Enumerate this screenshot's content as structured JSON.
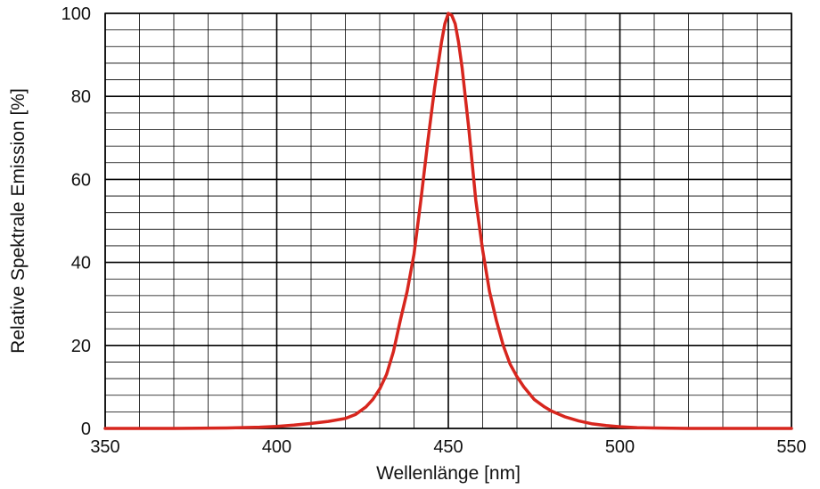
{
  "chart_data": {
    "type": "line",
    "title": "",
    "xlabel": "Wellenlänge [nm]",
    "ylabel": "Relative Spektrale Emission [%]",
    "xlim": [
      350,
      550
    ],
    "ylim": [
      0,
      100
    ],
    "x_ticks": [
      350,
      400,
      450,
      500,
      550
    ],
    "y_ticks": [
      0,
      20,
      40,
      60,
      80,
      100
    ],
    "x_tick_labels": [
      "350",
      "400",
      "450",
      "500",
      "550"
    ],
    "y_tick_labels": [
      "0",
      "20",
      "40",
      "60",
      "80",
      "100"
    ],
    "grid": true,
    "x_minor_step": 10,
    "y_minor_step": 4,
    "series_color": "#d7261e",
    "series": [
      {
        "x": [
          350,
          370,
          385,
          395,
          400,
          405,
          410,
          415,
          420,
          423,
          426,
          428,
          430,
          432,
          434,
          436,
          438,
          440,
          442,
          444,
          446,
          448,
          449,
          450,
          451,
          452,
          453,
          454,
          456,
          458,
          460,
          462,
          464,
          466,
          468,
          470,
          472,
          475,
          478,
          480,
          484,
          488,
          492,
          496,
          500,
          505,
          510,
          520,
          530,
          540,
          550
        ],
        "y": [
          0,
          0,
          0.1,
          0.3,
          0.5,
          0.8,
          1.2,
          1.7,
          2.4,
          3.4,
          5.2,
          7.0,
          9.5,
          13.0,
          18.5,
          26.0,
          33.0,
          42.0,
          55.0,
          69.0,
          82.0,
          93.0,
          97.5,
          100,
          99.5,
          97.5,
          93.0,
          87.0,
          72.0,
          55.0,
          43.0,
          33.0,
          26.0,
          20.0,
          15.5,
          12.5,
          10.0,
          7.0,
          5.2,
          4.2,
          2.8,
          1.8,
          1.1,
          0.7,
          0.4,
          0.2,
          0.1,
          0,
          0,
          0,
          0
        ]
      }
    ]
  }
}
